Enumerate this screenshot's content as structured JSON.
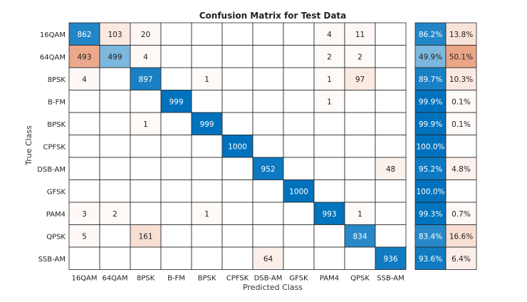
{
  "chart_data": {
    "type": "heatmap",
    "title": "Confusion Matrix for Test Data",
    "xlabel": "Predicted Class",
    "ylabel": "True Class",
    "classes": [
      "16QAM",
      "64QAM",
      "8PSK",
      "B-FM",
      "BPSK",
      "CPFSK",
      "DSB-AM",
      "GFSK",
      "PAM4",
      "QPSK",
      "SSB-AM"
    ],
    "matrix": [
      [
        862,
        103,
        20,
        0,
        0,
        0,
        0,
        0,
        4,
        11,
        0
      ],
      [
        493,
        499,
        4,
        0,
        0,
        0,
        0,
        0,
        2,
        2,
        0
      ],
      [
        4,
        0,
        897,
        0,
        1,
        0,
        0,
        0,
        1,
        97,
        0
      ],
      [
        0,
        0,
        0,
        999,
        0,
        0,
        0,
        0,
        1,
        0,
        0
      ],
      [
        0,
        0,
        1,
        0,
        999,
        0,
        0,
        0,
        0,
        0,
        0
      ],
      [
        0,
        0,
        0,
        0,
        0,
        1000,
        0,
        0,
        0,
        0,
        0
      ],
      [
        0,
        0,
        0,
        0,
        0,
        0,
        952,
        0,
        0,
        0,
        48
      ],
      [
        0,
        0,
        0,
        0,
        0,
        0,
        0,
        1000,
        0,
        0,
        0
      ],
      [
        3,
        2,
        0,
        0,
        1,
        0,
        0,
        0,
        993,
        1,
        0
      ],
      [
        5,
        0,
        161,
        0,
        0,
        0,
        0,
        0,
        0,
        834,
        0
      ],
      [
        0,
        0,
        0,
        0,
        0,
        0,
        64,
        0,
        0,
        0,
        936
      ]
    ],
    "row_summary": {
      "correct": [
        "86.2%",
        "49.9%",
        "89.7%",
        "99.9%",
        "99.9%",
        "100.0%",
        "95.2%",
        "100.0%",
        "99.3%",
        "83.4%",
        "93.6%"
      ],
      "incorrect": [
        "13.8%",
        "50.1%",
        "10.3%",
        "0.1%",
        "0.1%",
        "",
        "4.8%",
        "",
        "0.7%",
        "16.6%",
        "6.4%"
      ]
    },
    "colors": {
      "correct": "#0072bd",
      "incorrect": "#d95319",
      "grid": "#222222",
      "background": "#ffffff"
    },
    "grid": true,
    "legend": "none"
  }
}
